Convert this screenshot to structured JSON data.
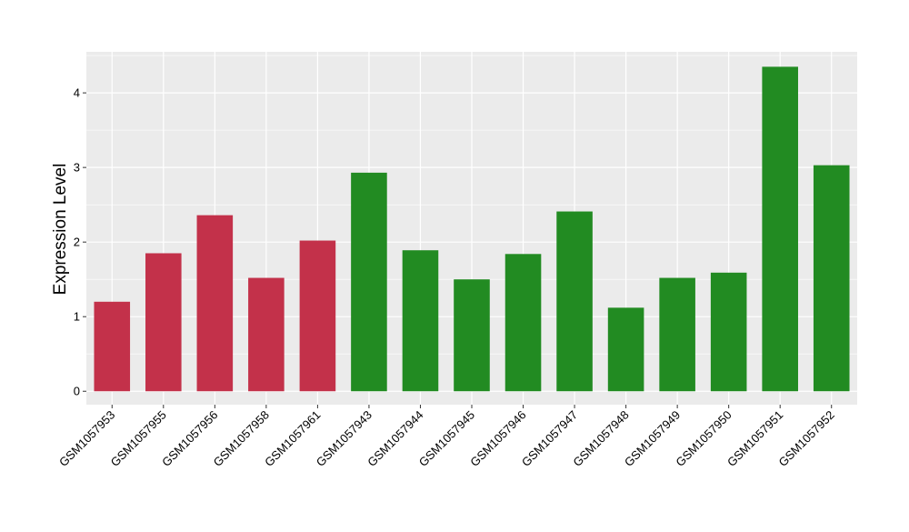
{
  "chart_data": {
    "type": "bar",
    "title": "",
    "xlabel": "",
    "ylabel": "Expression Level",
    "ylim": [
      -0.18,
      4.55
    ],
    "yticks": [
      0,
      1,
      2,
      3,
      4
    ],
    "grid": true,
    "legend": "none",
    "colors": {
      "group_a": "#c3314a",
      "group_b": "#228b22",
      "panel": "#ebebeb",
      "gridline": "#ffffff"
    },
    "categories": [
      "GSM1057953",
      "GSM1057955",
      "GSM1057956",
      "GSM1057958",
      "GSM1057961",
      "GSM1057943",
      "GSM1057944",
      "GSM1057945",
      "GSM1057946",
      "GSM1057947",
      "GSM1057948",
      "GSM1057949",
      "GSM1057950",
      "GSM1057951",
      "GSM1057952"
    ],
    "values": [
      1.2,
      1.85,
      2.36,
      1.52,
      2.02,
      2.93,
      1.89,
      1.5,
      1.84,
      2.41,
      1.12,
      1.52,
      1.59,
      4.35,
      3.03
    ],
    "bar_groups": [
      "group_a",
      "group_a",
      "group_a",
      "group_a",
      "group_a",
      "group_b",
      "group_b",
      "group_b",
      "group_b",
      "group_b",
      "group_b",
      "group_b",
      "group_b",
      "group_b",
      "group_b"
    ]
  }
}
